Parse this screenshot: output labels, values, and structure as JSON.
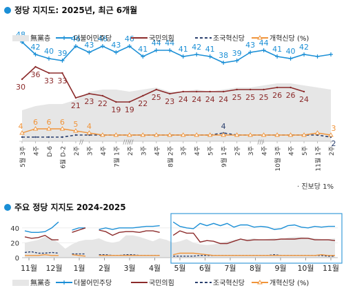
{
  "sections": {
    "top_title": "정당 지지도: 2025년, 최근 6개월",
    "bottom_title": "주요 정당 지지도 2024-2025",
    "footnote": "· 진보당 1%"
  },
  "legend": [
    {
      "label": "無黨층",
      "color": "#e6e6e6",
      "kind": "area"
    },
    {
      "label": "더불어민주당",
      "color": "#1b8fd6",
      "kind": "line"
    },
    {
      "label": "국민의힘",
      "color": "#8b2a2a",
      "kind": "line"
    },
    {
      "label": "조국혁신당",
      "color": "#2a3f6e",
      "kind": "dash"
    },
    {
      "label": "개혁신당 (%)",
      "color": "#f0943a",
      "kind": "line"
    }
  ],
  "chart_data": [
    {
      "type": "line",
      "title": "정당 지지도: 2025년, 최근 6개월",
      "categories": [
        "5월 3주",
        "4주",
        "D-6",
        "6월 D-2",
        "2주",
        "3주",
        "4주",
        "7월 1주",
        "2주",
        "3주",
        "4주",
        "8월 2주",
        "3주",
        "4주",
        "5주",
        "9월 1주",
        "2주",
        "3주",
        "4주",
        "10월 3주",
        "4주",
        "5주",
        "11월 1주",
        "2주"
      ],
      "ylim": [
        0,
        55
      ],
      "series": [
        {
          "name": "無黨층",
          "type": "area",
          "values": [
            15,
            17,
            18,
            18,
            20,
            24,
            25,
            25,
            24,
            25,
            26,
            24,
            24,
            25,
            24,
            25,
            26,
            26,
            27,
            28,
            28,
            27,
            26,
            25
          ]
        },
        {
          "name": "더불어민주당",
          "values": [
            48,
            42,
            40,
            39,
            46,
            43,
            46,
            43,
            46,
            41,
            44,
            44,
            41,
            42,
            41,
            38,
            39,
            43,
            44,
            41,
            40,
            42,
            41,
            42
          ],
          "labels": [
            48,
            42,
            40,
            39,
            46,
            43,
            46,
            43,
            46,
            41,
            44,
            44,
            41,
            42,
            41,
            38,
            39,
            43,
            44,
            41,
            40,
            42,
            null,
            null
          ]
        },
        {
          "name": "국민의힘",
          "values": [
            30,
            36,
            33,
            33,
            21,
            23,
            22,
            19,
            19,
            22,
            25,
            23,
            24,
            24,
            24,
            24,
            25,
            25,
            25,
            26,
            26,
            24,
            null,
            null
          ],
          "labels": [
            30,
            36,
            33,
            33,
            21,
            23,
            22,
            19,
            19,
            22,
            25,
            23,
            24,
            24,
            24,
            24,
            25,
            25,
            25,
            26,
            26,
            24,
            null,
            null
          ]
        },
        {
          "name": "조국혁신당",
          "values": [
            2,
            2,
            2,
            2,
            3,
            3,
            3,
            3,
            3,
            3,
            3,
            3,
            3,
            3,
            3,
            4,
            3,
            3,
            3,
            3,
            3,
            3,
            3,
            2
          ],
          "labels": [
            null,
            null,
            null,
            null,
            null,
            null,
            null,
            null,
            null,
            null,
            null,
            null,
            null,
            null,
            null,
            4,
            null,
            null,
            null,
            null,
            null,
            null,
            null,
            2
          ]
        },
        {
          "name": "개혁신당 (%)",
          "values": [
            4,
            6,
            6,
            6,
            5,
            4,
            3,
            3,
            3,
            3,
            3,
            3,
            3,
            3,
            3,
            3,
            3,
            3,
            3,
            3,
            3,
            3,
            4,
            3
          ],
          "labels": [
            4,
            6,
            6,
            6,
            5,
            4,
            null,
            null,
            null,
            null,
            null,
            null,
            null,
            null,
            null,
            null,
            null,
            null,
            null,
            null,
            null,
            null,
            null,
            3
          ]
        }
      ]
    },
    {
      "type": "line",
      "title": "주요 정당 지지도 2024-2025",
      "x_ticks": [
        "11월",
        "12월",
        "1월",
        "2월",
        "3월",
        "4월",
        "5월",
        "6월",
        "7월",
        "8월",
        "9월",
        "10월",
        "11월"
      ],
      "y_ticks": [
        0,
        20,
        40
      ],
      "ylim": [
        0,
        50
      ],
      "series": [
        {
          "name": "無黨층",
          "type": "area",
          "values": [
            20,
            22,
            24,
            28,
            26,
            20,
            12,
            18,
            22,
            24,
            24,
            26,
            22,
            20,
            22,
            30,
            30,
            28,
            25,
            22,
            26,
            24,
            20,
            22,
            25,
            20,
            18,
            17,
            18,
            20,
            22,
            24,
            25,
            25,
            26,
            24,
            25,
            26,
            24,
            27,
            28,
            28,
            27,
            26,
            25,
            25,
            26
          ]
        },
        {
          "name": "더불어민주당",
          "values": [
            36,
            34,
            34,
            35,
            40,
            48,
            null,
            37,
            40,
            40,
            null,
            38,
            40,
            38,
            40,
            40,
            40,
            41,
            42,
            42,
            43,
            null,
            48,
            42,
            40,
            39,
            46,
            43,
            46,
            43,
            46,
            41,
            44,
            44,
            41,
            42,
            41,
            38,
            39,
            43,
            44,
            41,
            40,
            42,
            41,
            42,
            42
          ]
        },
        {
          "name": "국민의힘",
          "values": [
            28,
            26,
            27,
            30,
            24,
            24,
            null,
            34,
            37,
            40,
            null,
            37,
            35,
            30,
            34,
            35,
            35,
            34,
            36,
            36,
            34,
            null,
            30,
            36,
            33,
            33,
            21,
            23,
            22,
            19,
            19,
            22,
            25,
            23,
            24,
            24,
            24,
            24,
            25,
            25,
            25,
            26,
            26,
            24,
            24,
            24,
            23
          ]
        },
        {
          "name": "조국혁신당",
          "values": [
            7,
            8,
            6,
            6,
            7,
            6,
            null,
            5,
            5,
            5,
            null,
            4,
            4,
            3,
            3,
            4,
            4,
            3,
            3,
            3,
            3,
            null,
            2,
            2,
            2,
            2,
            3,
            3,
            3,
            3,
            3,
            3,
            3,
            3,
            3,
            3,
            3,
            4,
            3,
            3,
            3,
            3,
            3,
            3,
            3,
            2,
            2
          ]
        },
        {
          "name": "개혁신당 (%)",
          "values": [
            3,
            3,
            3,
            4,
            3,
            3,
            null,
            4,
            3,
            2,
            null,
            3,
            3,
            3,
            3,
            3,
            3,
            3,
            3,
            3,
            3,
            null,
            4,
            6,
            6,
            6,
            5,
            4,
            3,
            3,
            3,
            3,
            3,
            3,
            3,
            3,
            3,
            3,
            3,
            3,
            3,
            3,
            3,
            3,
            4,
            3,
            3
          ]
        }
      ]
    }
  ]
}
